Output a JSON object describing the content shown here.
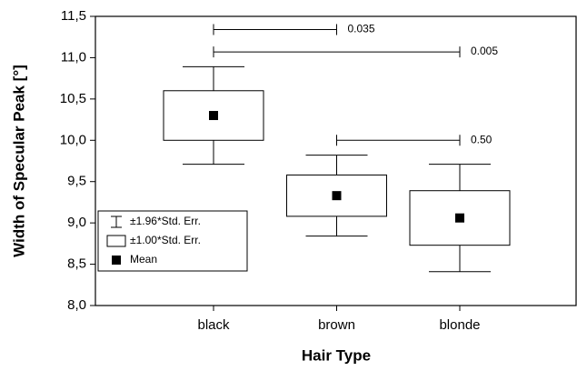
{
  "chart_data": {
    "type": "box",
    "x_label": "Hair Type",
    "y_label": "Width of Specular Peak [°]",
    "categories": [
      "black",
      "brown",
      "blonde"
    ],
    "series": [
      {
        "name": "±1.96*Std. Err.",
        "color": "#000000",
        "low": [
          9.71,
          8.84,
          8.41
        ],
        "high": [
          10.89,
          9.82,
          9.71
        ]
      },
      {
        "name": "±1.00*Std. Err.",
        "color": "#ffffff",
        "low": [
          10.0,
          9.08,
          8.73
        ],
        "high": [
          10.6,
          9.58,
          9.39
        ]
      },
      {
        "name": "Mean",
        "color": "#000000",
        "values": [
          10.3,
          9.33,
          9.06
        ]
      }
    ],
    "comparisons": [
      {
        "from": 0,
        "to": 1,
        "y": 11.34,
        "label": "0.035"
      },
      {
        "from": 0,
        "to": 2,
        "y": 11.07,
        "label": "0.005"
      },
      {
        "from": 1,
        "to": 2,
        "y": 10.0,
        "label": "0.50"
      }
    ],
    "ylim": [
      8.0,
      11.5
    ],
    "yticks": [
      {
        "value": 8.0,
        "label": "8,0"
      },
      {
        "value": 8.5,
        "label": "8,5"
      },
      {
        "value": 9.0,
        "label": "9,0"
      },
      {
        "value": 9.5,
        "label": "9,5"
      },
      {
        "value": 10.0,
        "label": "10,0"
      },
      {
        "value": 10.5,
        "label": "10,5"
      },
      {
        "value": 11.0,
        "label": "11,0"
      },
      {
        "value": 11.5,
        "label": "11,5"
      }
    ],
    "legend": "lower left"
  }
}
